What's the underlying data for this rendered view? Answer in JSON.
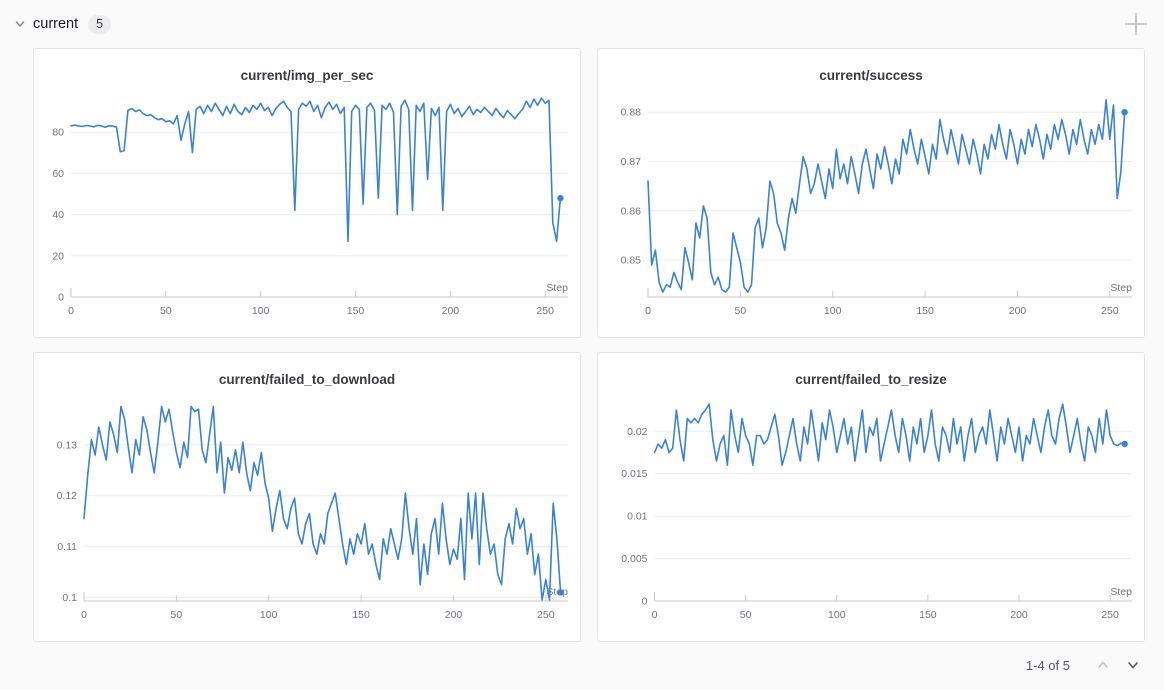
{
  "header": {
    "title": "current",
    "count": "5"
  },
  "footer": {
    "page_info": "1-4 of 5"
  },
  "icons": {
    "section_collapse": "chevron-down",
    "add_panel": "plus",
    "pager_prev": "chevron-up",
    "pager_next": "chevron-down"
  },
  "colors": {
    "line": "#3b82d6",
    "grid": "#ececf1",
    "axis": "#c9c9d1",
    "tick_label": "#73727c",
    "panel_border": "#e4e4e8",
    "page_bg": "#fafafa",
    "badge_bg": "#ececee"
  },
  "chart_data": [
    {
      "type": "line",
      "title": "current/img_per_sec",
      "xlabel": "Step",
      "legend": "off",
      "grid": "horizontal",
      "xlim": [
        0,
        262
      ],
      "ylim": [
        0,
        98
      ],
      "xticks": [
        0,
        50,
        100,
        150,
        200,
        250
      ],
      "yticks": [
        0,
        20,
        40,
        60,
        80
      ],
      "x_step": 2,
      "end_marker": true,
      "y": [
        83,
        83.4,
        83,
        82.7,
        83.2,
        83,
        82.5,
        83.3,
        83,
        82.4,
        83.1,
        82.9,
        82.4,
        70.5,
        71,
        90.5,
        91.5,
        90,
        90.8,
        89,
        88,
        88.5,
        87,
        86,
        86.5,
        85,
        85.5,
        84,
        88,
        76,
        84,
        90,
        70,
        91,
        92.5,
        89,
        93,
        90,
        94,
        91,
        88,
        92.5,
        89,
        93.5,
        90,
        88.5,
        92,
        89.5,
        93,
        91,
        94,
        90.5,
        92,
        88,
        91.5,
        93.5,
        95,
        92,
        90,
        42,
        91,
        94,
        92.5,
        95,
        90,
        93,
        87,
        92,
        94.5,
        91,
        93.5,
        89,
        92,
        27,
        90,
        93,
        91,
        45,
        92,
        94,
        90.5,
        48,
        93,
        91,
        94,
        89.5,
        40,
        92.5,
        95.5,
        91,
        42,
        93,
        90,
        94,
        57,
        91.5,
        88,
        92,
        42,
        90,
        93.5,
        89,
        91.5,
        87.5,
        90,
        92.5,
        88.5,
        91,
        89.5,
        92,
        90,
        88,
        91.5,
        89,
        87,
        90.5,
        88.5,
        86.5,
        89,
        91,
        95,
        92,
        96,
        93,
        96.5,
        94,
        95.5,
        36,
        27,
        48
      ]
    },
    {
      "type": "line",
      "title": "current/success",
      "xlabel": "Step",
      "legend": "off",
      "grid": "horizontal",
      "xlim": [
        0,
        262
      ],
      "ylim": [
        0.8425,
        0.8835
      ],
      "xticks": [
        0,
        50,
        100,
        150,
        200,
        250
      ],
      "yticks": [
        0.85,
        0.86,
        0.87,
        0.88
      ],
      "x_step": 2,
      "end_marker": true,
      "y": [
        0.866,
        0.849,
        0.852,
        0.8455,
        0.8435,
        0.845,
        0.8445,
        0.8475,
        0.8455,
        0.844,
        0.8525,
        0.8495,
        0.846,
        0.8575,
        0.8545,
        0.861,
        0.8585,
        0.8475,
        0.845,
        0.8465,
        0.844,
        0.8435,
        0.8445,
        0.8555,
        0.8525,
        0.8495,
        0.8445,
        0.8435,
        0.845,
        0.8565,
        0.8585,
        0.8525,
        0.8565,
        0.866,
        0.8635,
        0.8575,
        0.8555,
        0.852,
        0.8585,
        0.8625,
        0.8595,
        0.8655,
        0.871,
        0.8685,
        0.8635,
        0.8655,
        0.8695,
        0.866,
        0.8625,
        0.8685,
        0.8645,
        0.8725,
        0.8665,
        0.8695,
        0.8655,
        0.871,
        0.8675,
        0.8635,
        0.8695,
        0.8725,
        0.8685,
        0.8645,
        0.8715,
        0.8685,
        0.873,
        0.8695,
        0.8655,
        0.8705,
        0.8675,
        0.8745,
        0.8715,
        0.8765,
        0.8725,
        0.8695,
        0.8745,
        0.871,
        0.8675,
        0.8735,
        0.8705,
        0.8785,
        0.8745,
        0.8715,
        0.8765,
        0.873,
        0.8695,
        0.8755,
        0.8725,
        0.8695,
        0.8745,
        0.8715,
        0.8675,
        0.8735,
        0.8705,
        0.8755,
        0.8725,
        0.8775,
        0.8735,
        0.8705,
        0.8765,
        0.8735,
        0.8695,
        0.8745,
        0.8715,
        0.8765,
        0.873,
        0.8775,
        0.8745,
        0.8705,
        0.8755,
        0.8725,
        0.8775,
        0.8745,
        0.8785,
        0.8755,
        0.8715,
        0.8765,
        0.8735,
        0.8785,
        0.8745,
        0.8715,
        0.8765,
        0.8735,
        0.8775,
        0.8745,
        0.8825,
        0.8745,
        0.8815,
        0.8625,
        0.868,
        0.88
      ]
    },
    {
      "type": "line",
      "title": "current/failed_to_download",
      "xlabel": "Step",
      "legend": "off",
      "grid": "horizontal",
      "xlim": [
        0,
        262
      ],
      "ylim": [
        0.0993,
        0.139
      ],
      "xticks": [
        0,
        50,
        100,
        150,
        200,
        250
      ],
      "yticks": [
        0.1,
        0.11,
        0.12,
        0.13
      ],
      "x_step": 2,
      "end_marker": true,
      "y": [
        0.1155,
        0.124,
        0.131,
        0.128,
        0.1335,
        0.13,
        0.127,
        0.1345,
        0.132,
        0.1285,
        0.1375,
        0.135,
        0.1295,
        0.1245,
        0.131,
        0.128,
        0.1355,
        0.133,
        0.1285,
        0.1245,
        0.1305,
        0.1375,
        0.1345,
        0.137,
        0.1325,
        0.1285,
        0.1255,
        0.1305,
        0.1275,
        0.1375,
        0.1365,
        0.137,
        0.129,
        0.1265,
        0.132,
        0.1375,
        0.1245,
        0.1305,
        0.1205,
        0.1275,
        0.125,
        0.129,
        0.1245,
        0.1305,
        0.1245,
        0.121,
        0.1265,
        0.124,
        0.1285,
        0.1225,
        0.1195,
        0.113,
        0.1175,
        0.121,
        0.1155,
        0.1135,
        0.1175,
        0.1195,
        0.1125,
        0.1105,
        0.1145,
        0.1165,
        0.1105,
        0.1085,
        0.1125,
        0.1105,
        0.1165,
        0.1185,
        0.1205,
        0.1155,
        0.1105,
        0.1065,
        0.1115,
        0.1085,
        0.1125,
        0.1105,
        0.1145,
        0.1085,
        0.1105,
        0.1065,
        0.1035,
        0.1115,
        0.1085,
        0.1135,
        0.1105,
        0.1075,
        0.1115,
        0.1205,
        0.1135,
        0.1085,
        0.1155,
        0.1025,
        0.1105,
        0.1045,
        0.1125,
        0.1155,
        0.1085,
        0.1185,
        0.1115,
        0.1065,
        0.1095,
        0.1075,
        0.1155,
        0.1035,
        0.1205,
        0.1115,
        0.1205,
        0.1065,
        0.1205,
        0.1135,
        0.1085,
        0.1105,
        0.1045,
        0.1025,
        0.1115,
        0.1145,
        0.1105,
        0.1175,
        0.1135,
        0.1155,
        0.1085,
        0.1125,
        0.1045,
        0.1085,
        0.0995,
        0.1035,
        0.0995,
        0.1185,
        0.1115,
        0.101
      ]
    },
    {
      "type": "line",
      "title": "current/failed_to_resize",
      "xlabel": "Step",
      "legend": "off",
      "grid": "horizontal",
      "xlim": [
        0,
        262
      ],
      "ylim": [
        0,
        0.0238
      ],
      "xticks": [
        0,
        50,
        100,
        150,
        200,
        250
      ],
      "yticks": [
        0,
        0.005,
        0.01,
        0.015,
        0.02
      ],
      "x_step": 2,
      "end_marker": true,
      "y": [
        0.0175,
        0.0185,
        0.018,
        0.019,
        0.0175,
        0.018,
        0.0225,
        0.019,
        0.0165,
        0.0215,
        0.021,
        0.0215,
        0.021,
        0.022,
        0.0225,
        0.0232,
        0.019,
        0.0165,
        0.0185,
        0.0195,
        0.016,
        0.0225,
        0.0195,
        0.0175,
        0.0215,
        0.0195,
        0.0185,
        0.016,
        0.0195,
        0.0195,
        0.0185,
        0.019,
        0.0205,
        0.022,
        0.0195,
        0.016,
        0.0175,
        0.0195,
        0.0215,
        0.0185,
        0.0165,
        0.0205,
        0.0185,
        0.0225,
        0.0195,
        0.0165,
        0.021,
        0.019,
        0.0225,
        0.0205,
        0.0175,
        0.0195,
        0.0215,
        0.0185,
        0.0205,
        0.0165,
        0.0195,
        0.0225,
        0.0175,
        0.0205,
        0.0195,
        0.0215,
        0.0165,
        0.0185,
        0.0205,
        0.0225,
        0.0195,
        0.0175,
        0.0215,
        0.0195,
        0.0165,
        0.0205,
        0.0185,
        0.0215,
        0.0175,
        0.0195,
        0.0225,
        0.0185,
        0.0165,
        0.0205,
        0.0195,
        0.0175,
        0.0215,
        0.0185,
        0.0205,
        0.0165,
        0.0195,
        0.0215,
        0.0175,
        0.0195,
        0.0205,
        0.0185,
        0.0225,
        0.0195,
        0.0165,
        0.0205,
        0.0185,
        0.0215,
        0.0195,
        0.0175,
        0.0205,
        0.0165,
        0.0195,
        0.0185,
        0.0215,
        0.0195,
        0.0175,
        0.0205,
        0.0225,
        0.0195,
        0.0185,
        0.0215,
        0.0232,
        0.0205,
        0.0175,
        0.0195,
        0.0215,
        0.0185,
        0.0165,
        0.0205,
        0.0195,
        0.0175,
        0.0215,
        0.0185,
        0.0225,
        0.0195,
        0.0185,
        0.0183,
        0.0186,
        0.0185
      ]
    }
  ]
}
